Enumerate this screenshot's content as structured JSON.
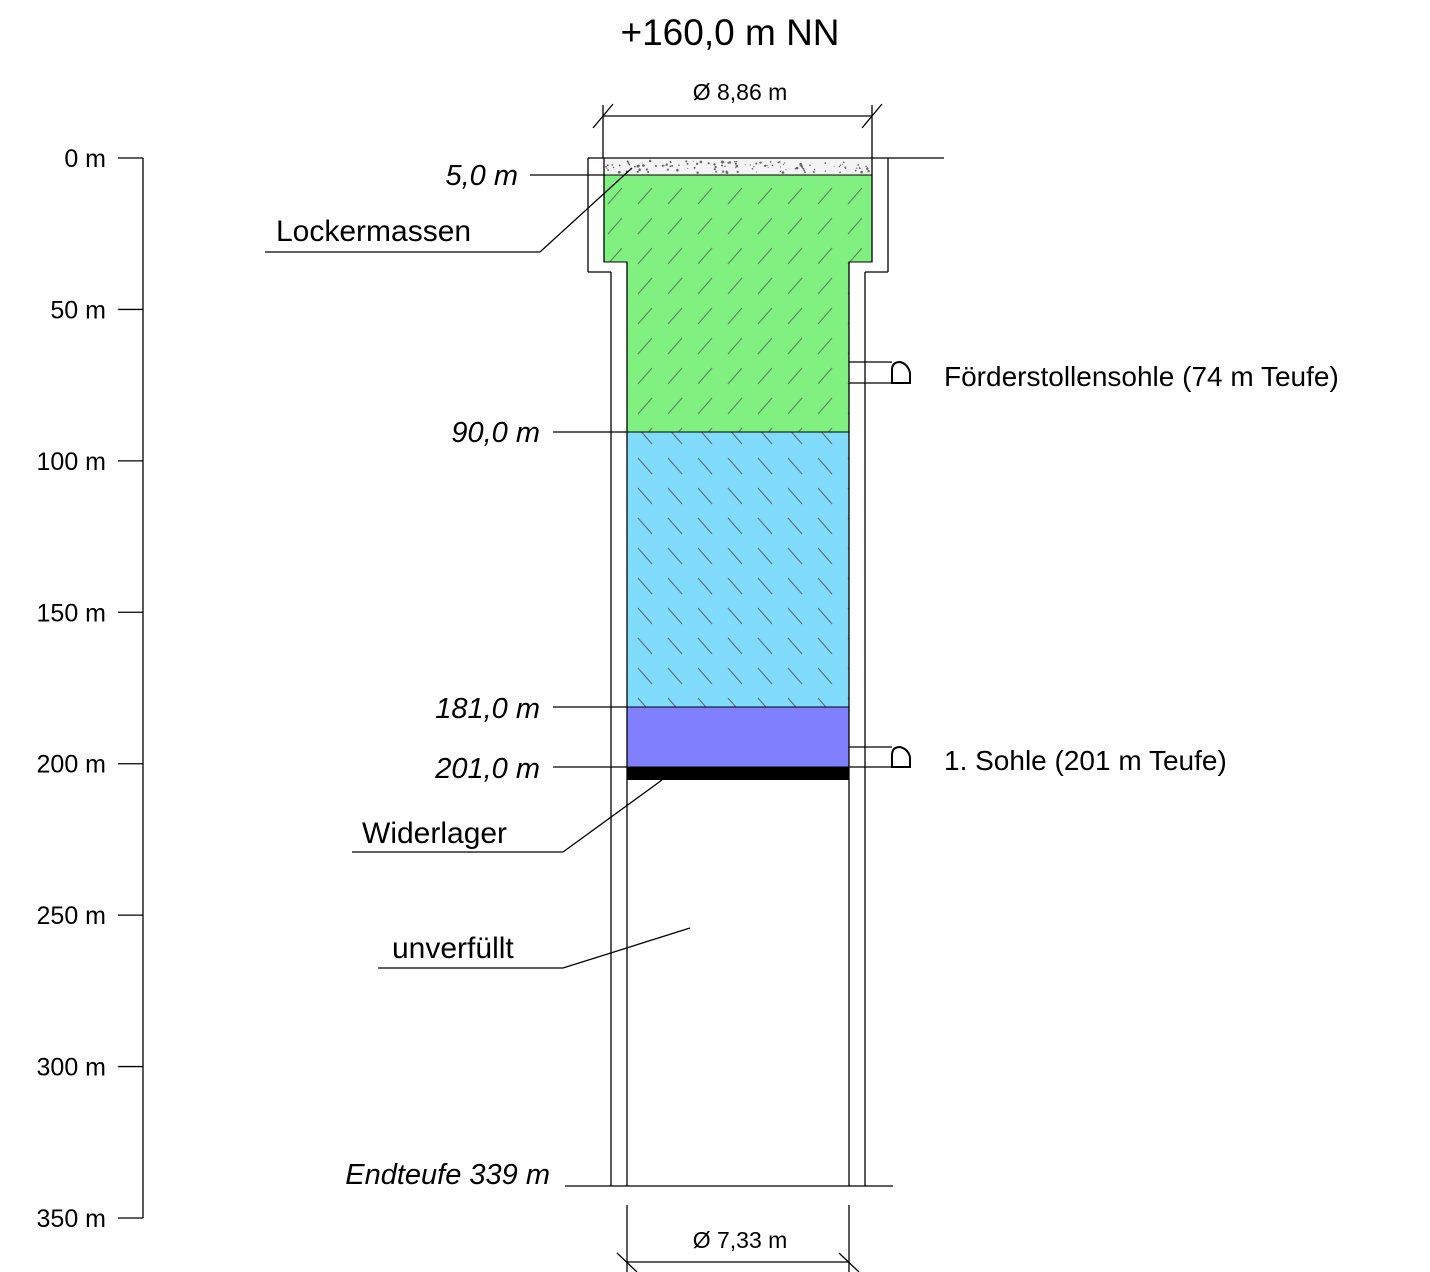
{
  "title": "+160,0 m NN",
  "dimensions": {
    "top_diameter": "Ø 8,86 m",
    "bottom_diameter": "Ø 7,33 m"
  },
  "depth_axis": {
    "ticks": [
      "0 m",
      "50 m",
      "100 m",
      "150 m",
      "200 m",
      "250 m",
      "300 m",
      "350 m"
    ],
    "tick_values": [
      0,
      50,
      100,
      150,
      200,
      250,
      300,
      350
    ]
  },
  "depth_markers": [
    {
      "label": "5,0 m",
      "value": 5.0
    },
    {
      "label": "90,0 m",
      "value": 90.0
    },
    {
      "label": "181,0 m",
      "value": 181.0
    },
    {
      "label": "201,0 m",
      "value": 201.0
    },
    {
      "label": "Endteufe 339 m",
      "value": 339
    }
  ],
  "layers": [
    {
      "name": "Lockermassen",
      "from": 0,
      "to": 5,
      "color": "#f4f4f4"
    },
    {
      "name": "",
      "from": 5,
      "to": 90,
      "color": "#80f080"
    },
    {
      "name": "",
      "from": 90,
      "to": 181,
      "color": "#80dcfa"
    },
    {
      "name": "",
      "from": 181,
      "to": 201,
      "color": "#8080ff"
    },
    {
      "name": "Widerlager",
      "from": 201,
      "to": 205,
      "color": "#000000"
    },
    {
      "name": "unverfüllt",
      "from": 205,
      "to": 339,
      "color": "#ffffff"
    }
  ],
  "labels": {
    "lockermassen": "Lockermassen",
    "widerlager": "Widerlager",
    "unverfuellt": "unverfüllt"
  },
  "levels": [
    {
      "label": "Förderstollensohle (74 m Teufe)",
      "depth": 74
    },
    {
      "label": "1. Sohle (201 m Teufe)",
      "depth": 201
    }
  ]
}
